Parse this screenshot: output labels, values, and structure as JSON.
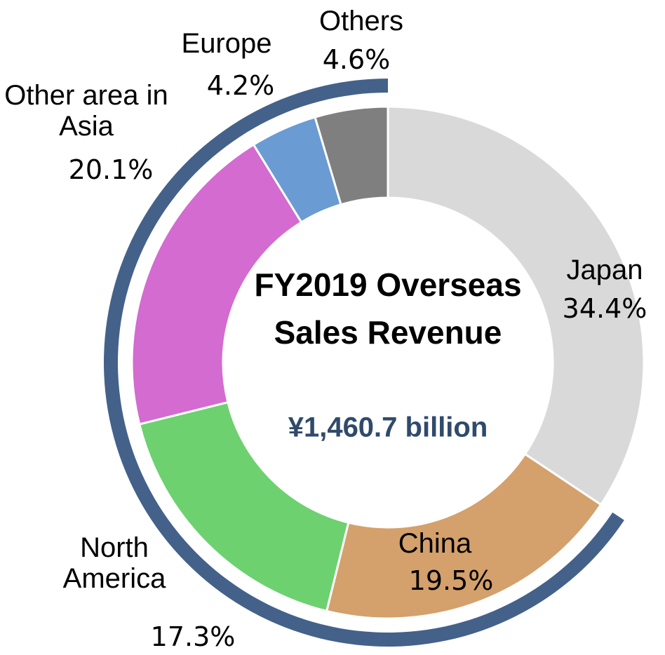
{
  "chart_data": {
    "type": "donut",
    "title": "FY2019 Overseas Sales Revenue",
    "subtitle": "¥1,460.7 billion",
    "categories": [
      "Japan",
      "China",
      "North America",
      "Other area in Asia",
      "Europe",
      "Others"
    ],
    "values": [
      34.4,
      19.5,
      17.3,
      20.1,
      4.2,
      4.6
    ],
    "value_labels": [
      "34.4%",
      "19.5%",
      "17.3%",
      "20.1%",
      "4.2%",
      "4.6%"
    ],
    "colors": [
      "#d9d9d9",
      "#d4a06b",
      "#6dd16f",
      "#d36bd0",
      "#6b9bd3",
      "#7f7f7f"
    ],
    "ring_color": "#44618a"
  }
}
